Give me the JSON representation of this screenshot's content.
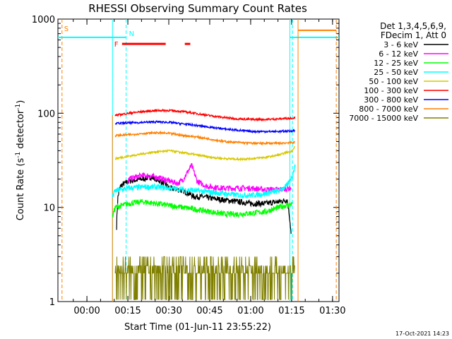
{
  "chart_data": {
    "type": "line",
    "title": "RHESSI Observing Summary Count Rates",
    "xlabel": "Start Time (01-Jun-11 23:55:22)",
    "ylabel_main": "Count Rate (s",
    "ylabel_sup1": "-1",
    "ylabel_mid": " detector",
    "ylabel_sup2": "-1",
    "ylabel_end": ")",
    "x_unit": "minutes after 23:55:22",
    "xlim": [
      -6,
      97
    ],
    "ylim": [
      1,
      1000
    ],
    "yscale": "log",
    "x_ticks": [
      {
        "value": 4.63,
        "label": "00:00"
      },
      {
        "value": 19.63,
        "label": "00:15"
      },
      {
        "value": 34.63,
        "label": "00:30"
      },
      {
        "value": 49.63,
        "label": "00:45"
      },
      {
        "value": 64.63,
        "label": "01:00"
      },
      {
        "value": 79.63,
        "label": "01:15"
      },
      {
        "value": 94.63,
        "label": "01:30"
      }
    ],
    "y_ticks": [
      {
        "value": 1,
        "label": "1"
      },
      {
        "value": 10,
        "label": "10"
      },
      {
        "value": 100,
        "label": "100"
      },
      {
        "value": 1000,
        "label": "1000"
      }
    ],
    "legend": {
      "header1": "Det 1,3,4,5,6,9,",
      "header2": "FDecim 1, Att 0",
      "placement": "right"
    },
    "series": [
      {
        "name": "3 - 6 keV",
        "color": "#000000",
        "x": [
          15.5,
          16,
          17,
          20,
          25,
          28,
          30,
          33,
          35,
          40,
          42,
          44,
          47,
          50,
          55,
          60,
          65,
          70,
          75,
          78,
          79.5
        ],
        "y": [
          6.2,
          13,
          17,
          19,
          20,
          21,
          20,
          18,
          16,
          15,
          14,
          13,
          13,
          12.5,
          12,
          11.5,
          11,
          11,
          11.5,
          12,
          5
        ]
      },
      {
        "name": "6 - 12 keV",
        "color": "#ff00ff",
        "x": [
          19.5,
          20,
          25,
          30,
          35,
          38,
          40,
          42,
          43,
          44,
          45,
          48,
          50,
          55,
          60,
          65,
          70,
          75,
          79.5
        ],
        "y": [
          17,
          20,
          22,
          21,
          19,
          18,
          20,
          25,
          28,
          23,
          19,
          17,
          16.5,
          16,
          16,
          16,
          15.5,
          15.5,
          16
        ]
      },
      {
        "name": "12 - 25 keV",
        "color": "#00ff00",
        "x": [
          14,
          15,
          20,
          25,
          30,
          35,
          40,
          45,
          50,
          55,
          60,
          65,
          70,
          75,
          80
        ],
        "y": [
          8,
          10,
          11,
          11.5,
          11,
          10.5,
          10,
          9.5,
          9,
          8.5,
          8.5,
          8.7,
          9,
          10,
          11
        ]
      },
      {
        "name": "25 - 50 keV",
        "color": "#00ffff",
        "x": [
          14,
          15,
          20,
          25,
          30,
          35,
          40,
          45,
          50,
          55,
          60,
          65,
          70,
          75,
          78,
          80,
          81
        ],
        "y": [
          13,
          15,
          16,
          16.5,
          16.5,
          16,
          15.5,
          15,
          14.5,
          14,
          13.5,
          13.5,
          14,
          15,
          17,
          22,
          28
        ]
      },
      {
        "name": "50 - 100 keV",
        "color": "#d8c800",
        "x": [
          15,
          20,
          25,
          30,
          35,
          40,
          45,
          50,
          55,
          60,
          65,
          70,
          75,
          80,
          81
        ],
        "y": [
          33,
          35,
          37,
          39,
          40,
          38,
          36,
          34,
          33,
          32.5,
          33,
          34,
          36,
          40,
          45
        ]
      },
      {
        "name": "100 - 300 keV",
        "color": "#ff0000",
        "x": [
          15,
          20,
          25,
          30,
          35,
          40,
          45,
          50,
          55,
          60,
          65,
          70,
          75,
          80,
          81
        ],
        "y": [
          95,
          100,
          104,
          107,
          107,
          104,
          99,
          94,
          90,
          87,
          86,
          86,
          87,
          89,
          90
        ]
      },
      {
        "name": "300 - 800 keV",
        "color": "#0000ff",
        "x": [
          15,
          20,
          25,
          30,
          35,
          40,
          45,
          50,
          55,
          60,
          65,
          70,
          75,
          80,
          81
        ],
        "y": [
          78,
          79,
          80,
          81,
          80,
          77,
          74,
          71,
          68,
          66,
          64,
          64,
          64,
          65,
          65
        ]
      },
      {
        "name": "800 - 7000 keV",
        "color": "#ff8000",
        "x": [
          15,
          20,
          25,
          30,
          35,
          40,
          45,
          50,
          55,
          60,
          65,
          70,
          75,
          80,
          81
        ],
        "y": [
          58,
          59,
          61,
          62,
          61,
          58,
          56,
          53,
          50,
          49,
          48,
          48,
          48,
          49,
          49
        ]
      },
      {
        "name": "7000 - 15000 keV",
        "color": "#808000",
        "x": [
          15,
          25,
          35,
          40,
          50,
          60,
          70,
          75,
          80,
          81
        ],
        "y": [
          2,
          2.4,
          2.7,
          2.2,
          2,
          2,
          2,
          2.1,
          2.3,
          2.2
        ]
      }
    ],
    "annotations": {
      "flag_s": {
        "label": "S",
        "color": "#ff8000",
        "x_line": -4.5
      },
      "flag_n": {
        "label": "N",
        "color": "#00ffff",
        "x_lines": [
          14,
          19,
          79,
          80
        ],
        "level": 640
      },
      "flag_f": {
        "label": "F",
        "color": "#ff0000",
        "level": 545,
        "segments": [
          [
            17.5,
            33.5
          ],
          [
            40.5,
            42.5
          ]
        ]
      },
      "orange_lines": [
        82,
        96
      ],
      "orange_level": 760,
      "cyan_level_right": 640
    }
  },
  "footer_date": "17-Oct-2021 14:23"
}
